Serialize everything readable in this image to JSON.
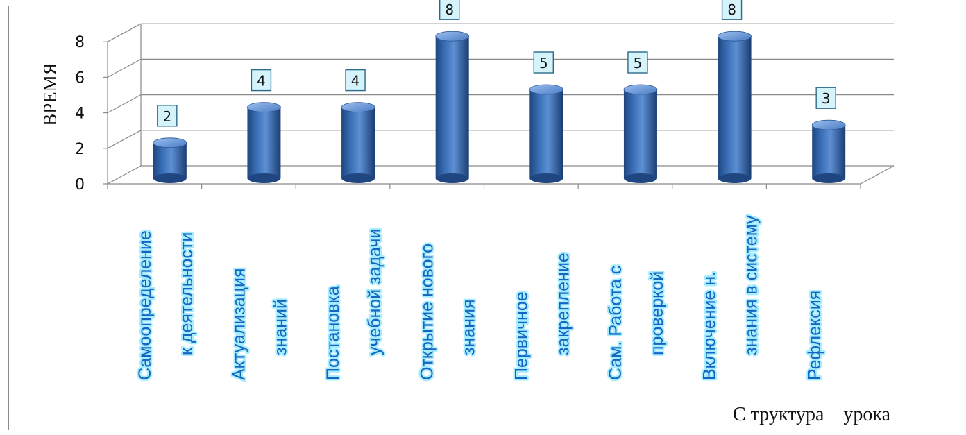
{
  "chart_data": {
    "type": "bar",
    "title": "",
    "ylabel": "ВРЕМЯ",
    "xlabel": "С труктура    урока",
    "ylim": [
      0,
      8
    ],
    "yticks": [
      0,
      2,
      4,
      6,
      8
    ],
    "grid": true,
    "categories": [
      [
        "Самоопределение",
        "к деятельности"
      ],
      [
        "Актуализация",
        "знаний"
      ],
      [
        "Постановка",
        "учебной задачи"
      ],
      [
        "Открытие нового",
        "знания"
      ],
      [
        "Первичное",
        "закрепление"
      ],
      [
        "Сам. Работа с",
        "проверкой"
      ],
      [
        "Включение н.",
        "знания в систему"
      ],
      [
        "Рефлексия"
      ]
    ],
    "values": [
      2,
      4,
      4,
      8,
      5,
      5,
      8,
      3
    ],
    "colors": {
      "bar": "#3a6fb6",
      "bar_dark": "#1f4680",
      "bar_light": "#8fb3e6",
      "label_box": "#d4f3fb",
      "category_text": "#1565c0",
      "category_glow": "#a6ecff"
    }
  }
}
